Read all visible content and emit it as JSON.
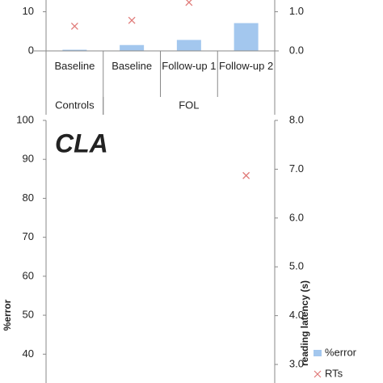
{
  "chart_data": [
    {
      "type": "bar",
      "categories": [
        "Baseline",
        "Baseline",
        "Follow-up 1",
        "Follow-up 2"
      ],
      "groups": [
        {
          "label": "Controls",
          "span": 1
        },
        {
          "label": "FOL",
          "span": 3
        }
      ],
      "ylim": [
        0,
        13
      ],
      "yticks": [
        0,
        10
      ],
      "y2lim": [
        0,
        1.3
      ],
      "y2ticks": [
        {
          "value": 0,
          "label": "0.0"
        },
        {
          "value": 1,
          "label": "1.0"
        }
      ],
      "series": [
        {
          "color": "#a3c7ee",
          "values": [
            0.3,
            1.5,
            2.8,
            7.1
          ]
        },
        {
          "color": "#e07a78",
          "axis": "y2",
          "marker": "x",
          "values": [
            0.63,
            0.78,
            1.24,
            null
          ]
        }
      ]
    },
    {
      "type": "bar",
      "title": "CLA",
      "ylabel": "%error",
      "y2label": "reading latency (s)",
      "ylim": [
        32.6,
        100
      ],
      "yticks": [
        40,
        50,
        60,
        70,
        80,
        90,
        100
      ],
      "y2lim": [
        2.62,
        8.0
      ],
      "y2ticks": [
        {
          "value": 3,
          "label": "3.0"
        },
        {
          "value": 4,
          "label": "4.0"
        },
        {
          "value": 5,
          "label": "5.0"
        },
        {
          "value": 6,
          "label": "6.0"
        },
        {
          "value": 7,
          "label": "7.0"
        },
        {
          "value": 8,
          "label": "8.0"
        }
      ],
      "series": [
        {
          "name": "%error",
          "color": "#a3c7ee",
          "values": [
            null,
            null,
            null,
            null
          ]
        },
        {
          "name": "RTs",
          "color": "#e07a78",
          "axis": "y2",
          "marker": "x",
          "values": [
            null,
            null,
            null,
            6.87
          ]
        }
      ]
    }
  ]
}
